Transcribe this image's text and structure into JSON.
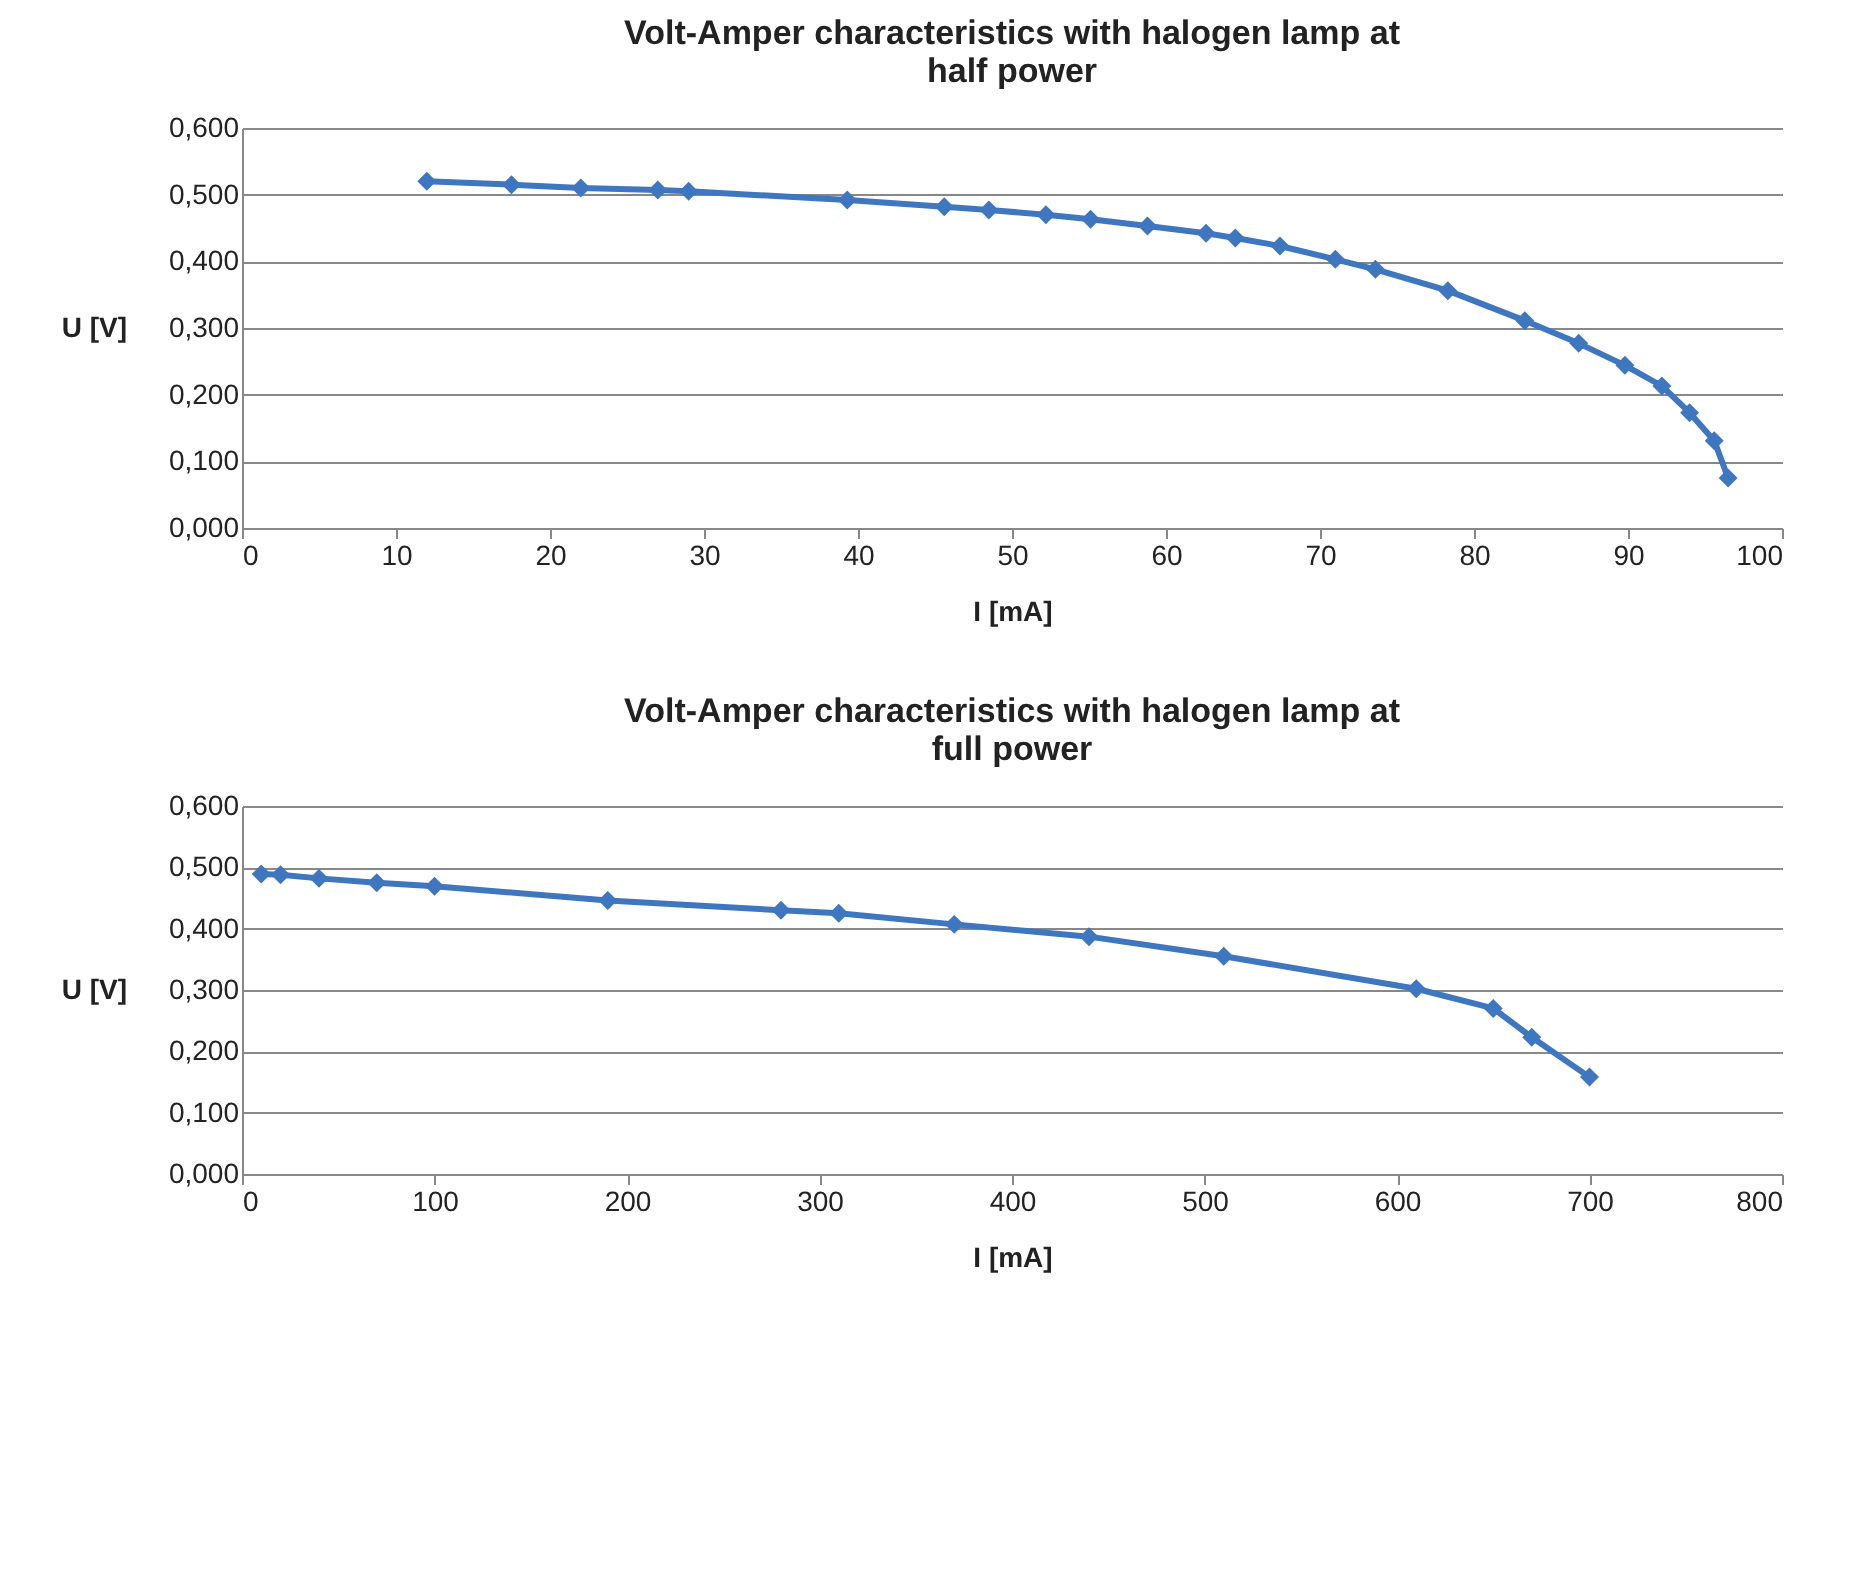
{
  "chart_data": [
    {
      "type": "line",
      "title": "Volt-Amper characteristics with halogen lamp at half power",
      "xlabel": "I [mA]",
      "ylabel": "U [V]",
      "x": [
        12,
        17.5,
        22,
        27,
        29,
        39.3,
        45.6,
        48.5,
        52.2,
        55.1,
        58.8,
        62.6,
        64.5,
        67.4,
        71,
        73.6,
        78.3,
        83.3,
        86.8,
        89.8,
        92.2,
        94,
        95.6,
        96.5
      ],
      "series": [
        {
          "color": "#3f76c0",
          "values": [
            0.52,
            0.515,
            0.51,
            0.507,
            0.505,
            0.492,
            0.482,
            0.477,
            0.47,
            0.463,
            0.453,
            0.442,
            0.435,
            0.423,
            0.403,
            0.388,
            0.356,
            0.311,
            0.277,
            0.244,
            0.213,
            0.173,
            0.131,
            0.075
          ]
        }
      ],
      "xlim": [
        0,
        100
      ],
      "xticks": [
        0,
        10,
        20,
        30,
        40,
        50,
        60,
        70,
        80,
        90,
        100
      ],
      "ylim": [
        0,
        0.6
      ],
      "yticks": [
        {
          "value": 0,
          "label": "0,000"
        },
        {
          "value": 0.1,
          "label": "0,100"
        },
        {
          "value": 0.2,
          "label": "0,200"
        },
        {
          "value": 0.3,
          "label": "0,300"
        },
        {
          "value": 0.4,
          "label": "0,400"
        },
        {
          "value": 0.5,
          "label": "0,500"
        },
        {
          "value": 0.6,
          "label": "0,600"
        }
      ],
      "grid": "y",
      "marker": "diamond",
      "line_style": "solid"
    },
    {
      "type": "line",
      "title": "Volt-Amper characteristics with halogen lamp at full power",
      "xlabel": "I [mA]",
      "ylabel": "U [V]",
      "x": [
        10,
        20,
        40,
        70,
        100,
        190,
        280,
        310,
        370,
        440,
        510,
        610,
        650,
        670,
        700
      ],
      "series": [
        {
          "color": "#3f76c0",
          "values": [
            0.489,
            0.488,
            0.482,
            0.475,
            0.469,
            0.446,
            0.43,
            0.425,
            0.407,
            0.387,
            0.355,
            0.302,
            0.27,
            0.223,
            0.158
          ]
        }
      ],
      "xlim": [
        0,
        800
      ],
      "xticks": [
        0,
        100,
        200,
        300,
        400,
        500,
        600,
        700,
        800
      ],
      "ylim": [
        0,
        0.6
      ],
      "yticks": [
        {
          "value": 0,
          "label": "0,000"
        },
        {
          "value": 0.1,
          "label": "0,100"
        },
        {
          "value": 0.2,
          "label": "0,200"
        },
        {
          "value": 0.3,
          "label": "0,300"
        },
        {
          "value": 0.4,
          "label": "0,400"
        },
        {
          "value": 0.5,
          "label": "0,500"
        },
        {
          "value": 0.6,
          "label": "0,600"
        }
      ],
      "grid": "y",
      "marker": "diamond",
      "line_style": "solid"
    }
  ]
}
